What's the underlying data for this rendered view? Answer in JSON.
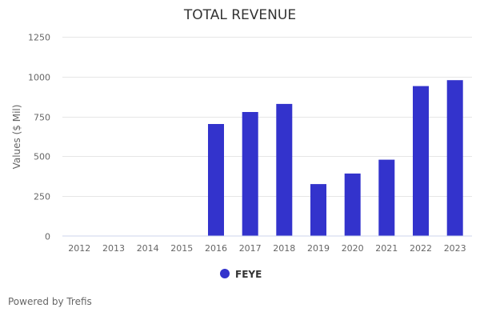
{
  "chart_data": {
    "type": "bar",
    "title": "TOTAL REVENUE",
    "xlabel": "",
    "ylabel": "Values ($ Mil)",
    "ylim": [
      0,
      1250
    ],
    "yticks": [
      "0",
      "250",
      "500",
      "750",
      "1000",
      "1250"
    ],
    "ytick_values": [
      0,
      250,
      500,
      750,
      1000,
      1250
    ],
    "grid": true,
    "legend_position": "bottom-center",
    "categories": [
      "2012",
      "2013",
      "2014",
      "2015",
      "2016",
      "2017",
      "2018",
      "2019",
      "2020",
      "2021",
      "2022",
      "2023"
    ],
    "series": [
      {
        "name": "FEYE",
        "color": "#3333cc",
        "values": [
          0,
          0,
          0,
          0,
          703,
          778,
          829,
          326,
          392,
          479,
          941,
          978
        ]
      }
    ]
  },
  "footer": {
    "credit": "Powered by Trefis"
  }
}
